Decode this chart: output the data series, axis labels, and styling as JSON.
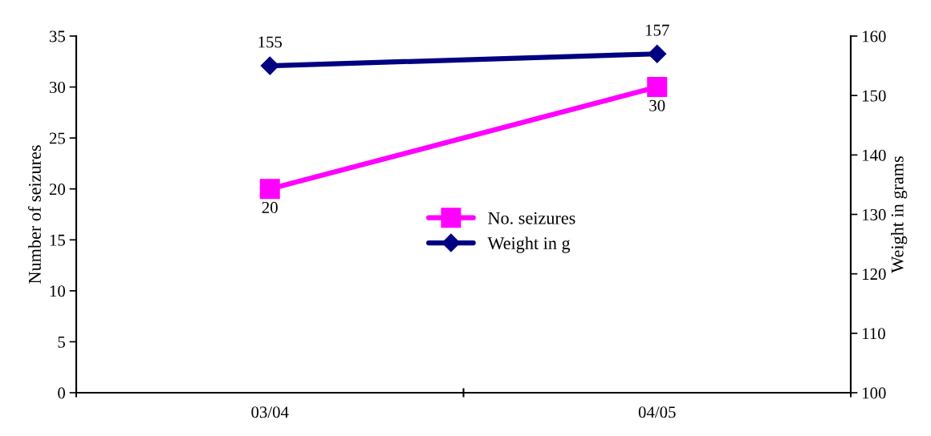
{
  "chart_data": {
    "type": "line",
    "categories": [
      "03/04",
      "04/05"
    ],
    "series": [
      {
        "name": "No. seizures",
        "color": "#ff00ff",
        "values": [
          20,
          30
        ],
        "marker": "square",
        "axis": "y"
      },
      {
        "name": "Weight in g",
        "color": "#000080",
        "values": [
          155,
          157
        ],
        "marker": "diamond",
        "axis": "y2"
      }
    ],
    "ylabel": "Number of seizures",
    "y2label": "Weight in grams",
    "ylim": [
      0,
      35
    ],
    "yticks": [
      0,
      5,
      10,
      15,
      20,
      25,
      30,
      35
    ],
    "y2lim": [
      100,
      160
    ],
    "y2ticks": [
      100,
      110,
      120,
      130,
      140,
      150,
      160
    ],
    "data_labels": true,
    "legend": "center",
    "grid": false,
    "line_style": "solid"
  }
}
